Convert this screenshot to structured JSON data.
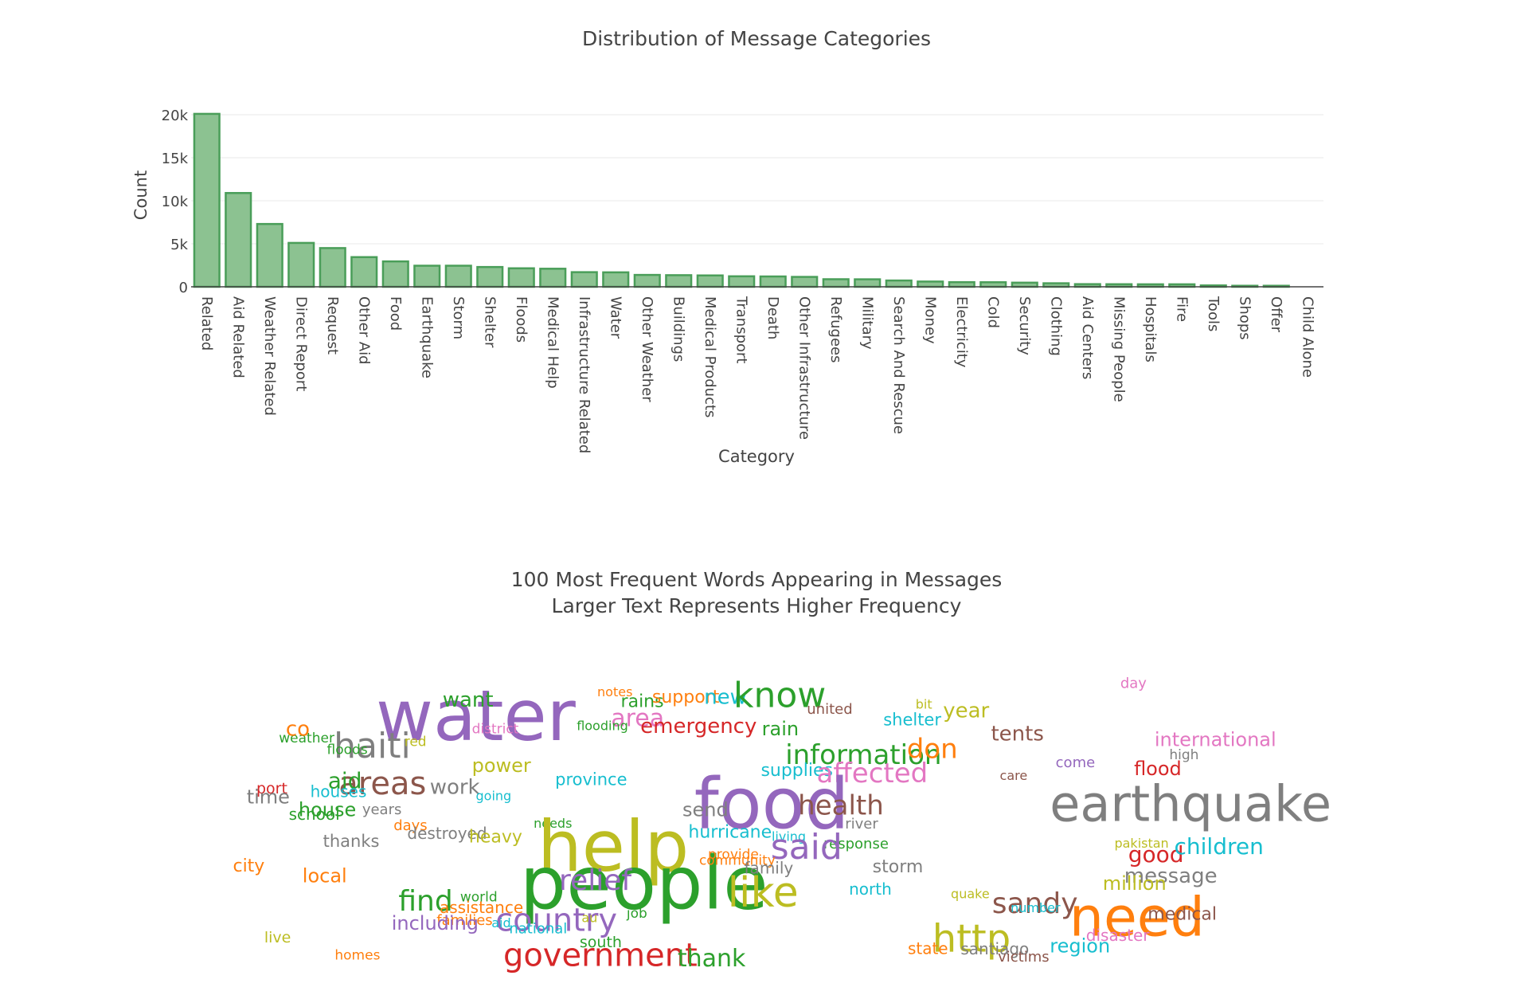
{
  "chart_data": [
    {
      "type": "bar",
      "title": "Distribution of Message Categories",
      "xlabel": "Category",
      "ylabel": "Count",
      "ylim": [
        0,
        20000
      ],
      "grid": true,
      "yticks": [
        {
          "value": 0,
          "label": "0"
        },
        {
          "value": 5000,
          "label": "5k"
        },
        {
          "value": 10000,
          "label": "10k"
        },
        {
          "value": 15000,
          "label": "15k"
        },
        {
          "value": 20000,
          "label": "20k"
        }
      ],
      "bar_color": "#8cc291",
      "bar_edge_color": "#4a9e59",
      "categories": [
        "Related",
        "Aid Related",
        "Weather Related",
        "Direct Report",
        "Request",
        "Other Aid",
        "Food",
        "Earthquake",
        "Storm",
        "Shelter",
        "Floods",
        "Medical Help",
        "Infrastructure Related",
        "Water",
        "Other Weather",
        "Buildings",
        "Medical Products",
        "Transport",
        "Death",
        "Other Infrastructure",
        "Refugees",
        "Military",
        "Search And Rescue",
        "Money",
        "Electricity",
        "Cold",
        "Security",
        "Clothing",
        "Aid Centers",
        "Missing People",
        "Hospitals",
        "Fire",
        "Tools",
        "Shops",
        "Offer",
        "Child Alone"
      ],
      "values": [
        20100,
        10900,
        7300,
        5100,
        4500,
        3450,
        2950,
        2450,
        2450,
        2300,
        2150,
        2100,
        1700,
        1680,
        1380,
        1350,
        1320,
        1220,
        1200,
        1150,
        880,
        870,
        730,
        610,
        540,
        530,
        480,
        410,
        310,
        300,
        290,
        290,
        160,
        120,
        120,
        0
      ]
    },
    {
      "type": "wordcloud",
      "title_lines": [
        "100 Most Frequent Words Appearing in Messages",
        "Larger Text Represents Higher Frequency"
      ],
      "words": [
        {
          "text": "water",
          "color": "#9467bd",
          "size": 88,
          "cx": 0.135,
          "cy": 0.173
        },
        {
          "text": "want",
          "color": "#2ca02c",
          "size": 26,
          "cx": 0.203,
          "cy": 0.12
        },
        {
          "text": "district",
          "color": "#e377c2",
          "size": 17,
          "cx": 0.233,
          "cy": 0.215
        },
        {
          "text": "weather",
          "color": "#2ca02c",
          "size": 17,
          "cx": 0.036,
          "cy": 0.245
        },
        {
          "text": "co",
          "color": "#ff7f0e",
          "size": 26,
          "cx": 0.043,
          "cy": 0.215
        },
        {
          "text": "haiti",
          "color": "#7f7f7f",
          "size": 44,
          "cx": 0.092,
          "cy": 0.27
        },
        {
          "text": "floods",
          "color": "#2ca02c",
          "size": 17,
          "cx": 0.085,
          "cy": 0.283
        },
        {
          "text": "red",
          "color": "#bcbd22",
          "size": 17,
          "cx": 0.164,
          "cy": 0.257
        },
        {
          "text": "power",
          "color": "#bcbd22",
          "size": 24,
          "cx": 0.233,
          "cy": 0.335
        },
        {
          "text": "areas",
          "color": "#8c564b",
          "size": 40,
          "cx": 0.097,
          "cy": 0.393
        },
        {
          "text": "aid",
          "color": "#2ca02c",
          "size": 28,
          "cx": 0.086,
          "cy": 0.385
        },
        {
          "text": "work",
          "color": "#7f7f7f",
          "size": 26,
          "cx": 0.19,
          "cy": 0.405
        },
        {
          "text": "going",
          "color": "#17becf",
          "size": 16,
          "cx": 0.237,
          "cy": 0.435
        },
        {
          "text": "province",
          "color": "#17becf",
          "size": 21,
          "cx": 0.318,
          "cy": 0.38
        },
        {
          "text": "houses",
          "color": "#17becf",
          "size": 20,
          "cx": 0.068,
          "cy": 0.42
        },
        {
          "text": "port",
          "color": "#d62728",
          "size": 19,
          "cx": 0.013,
          "cy": 0.41
        },
        {
          "text": "time",
          "color": "#7f7f7f",
          "size": 24,
          "cx": 0.003,
          "cy": 0.438
        },
        {
          "text": "house",
          "color": "#2ca02c",
          "size": 24,
          "cx": 0.056,
          "cy": 0.48
        },
        {
          "text": "school",
          "color": "#2ca02c",
          "size": 20,
          "cx": 0.046,
          "cy": 0.495
        },
        {
          "text": "years",
          "color": "#7f7f7f",
          "size": 18,
          "cx": 0.121,
          "cy": 0.478
        },
        {
          "text": "days",
          "color": "#ff7f0e",
          "size": 18,
          "cx": 0.153,
          "cy": 0.53
        },
        {
          "text": "destroyed",
          "color": "#7f7f7f",
          "size": 20,
          "cx": 0.167,
          "cy": 0.557
        },
        {
          "text": "heavy",
          "color": "#bcbd22",
          "size": 22,
          "cx": 0.23,
          "cy": 0.567
        },
        {
          "text": "needs",
          "color": "#2ca02c",
          "size": 16,
          "cx": 0.296,
          "cy": 0.525
        },
        {
          "text": "thanks",
          "color": "#7f7f7f",
          "size": 21,
          "cx": 0.081,
          "cy": 0.583
        },
        {
          "text": "city",
          "color": "#ff7f0e",
          "size": 22,
          "cx": -0.011,
          "cy": 0.662
        },
        {
          "text": "local",
          "color": "#ff7f0e",
          "size": 24,
          "cx": 0.06,
          "cy": 0.695
        },
        {
          "text": "help",
          "color": "#bcbd22",
          "size": 88,
          "cx": 0.3,
          "cy": 0.6
        },
        {
          "text": "people",
          "color": "#2ca02c",
          "size": 92,
          "cx": 0.282,
          "cy": 0.72
        },
        {
          "text": "relief",
          "color": "#9467bd",
          "size": 36,
          "cx": 0.322,
          "cy": 0.71
        },
        {
          "text": "find",
          "color": "#2ca02c",
          "size": 36,
          "cx": 0.158,
          "cy": 0.777
        },
        {
          "text": "world",
          "color": "#2ca02c",
          "size": 17,
          "cx": 0.221,
          "cy": 0.765
        },
        {
          "text": "assistance",
          "color": "#ff7f0e",
          "size": 20,
          "cx": 0.2,
          "cy": 0.8
        },
        {
          "text": "families",
          "color": "#ff7f0e",
          "size": 18,
          "cx": 0.197,
          "cy": 0.84
        },
        {
          "text": "including",
          "color": "#9467bd",
          "size": 24,
          "cx": 0.151,
          "cy": 0.85
        },
        {
          "text": "country",
          "color": "#9467bd",
          "size": 40,
          "cx": 0.257,
          "cy": 0.84
        },
        {
          "text": "aid",
          "color": "#17becf",
          "size": 16,
          "cx": 0.253,
          "cy": 0.85
        },
        {
          "text": "national",
          "color": "#17becf",
          "size": 18,
          "cx": 0.271,
          "cy": 0.868
        },
        {
          "text": "south",
          "color": "#2ca02c",
          "size": 19,
          "cx": 0.343,
          "cy": 0.912
        },
        {
          "text": "au",
          "color": "#bcbd22",
          "size": 16,
          "cx": 0.345,
          "cy": 0.833
        },
        {
          "text": "job",
          "color": "#2ca02c",
          "size": 17,
          "cx": 0.391,
          "cy": 0.818
        },
        {
          "text": "government",
          "color": "#d62728",
          "size": 40,
          "cx": 0.265,
          "cy": 0.955
        },
        {
          "text": "thank",
          "color": "#2ca02c",
          "size": 30,
          "cx": 0.443,
          "cy": 0.965
        },
        {
          "text": "live",
          "color": "#bcbd22",
          "size": 19,
          "cx": 0.021,
          "cy": 0.897
        },
        {
          "text": "homes",
          "color": "#ff7f0e",
          "size": 17,
          "cx": 0.093,
          "cy": 0.955
        },
        {
          "text": "notes",
          "color": "#ff7f0e",
          "size": 16,
          "cx": 0.361,
          "cy": 0.095
        },
        {
          "text": "rains",
          "color": "#2ca02c",
          "size": 22,
          "cx": 0.385,
          "cy": 0.125
        },
        {
          "text": "support",
          "color": "#ff7f0e",
          "size": 22,
          "cx": 0.417,
          "cy": 0.11
        },
        {
          "text": "new",
          "color": "#17becf",
          "size": 26,
          "cx": 0.47,
          "cy": 0.11
        },
        {
          "text": "know",
          "color": "#2ca02c",
          "size": 44,
          "cx": 0.5,
          "cy": 0.105
        },
        {
          "text": "area",
          "color": "#e377c2",
          "size": 30,
          "cx": 0.375,
          "cy": 0.18
        },
        {
          "text": "flooding",
          "color": "#2ca02c",
          "size": 16,
          "cx": 0.34,
          "cy": 0.205
        },
        {
          "text": "emergency",
          "color": "#d62728",
          "size": 26,
          "cx": 0.405,
          "cy": 0.205
        },
        {
          "text": "united",
          "color": "#8c564b",
          "size": 18,
          "cx": 0.575,
          "cy": 0.15
        },
        {
          "text": "rain",
          "color": "#2ca02c",
          "size": 24,
          "cx": 0.529,
          "cy": 0.215
        },
        {
          "text": "shelter",
          "color": "#17becf",
          "size": 21,
          "cx": 0.653,
          "cy": 0.185
        },
        {
          "text": "bit",
          "color": "#bcbd22",
          "size": 16,
          "cx": 0.686,
          "cy": 0.135
        },
        {
          "text": "year",
          "color": "#bcbd22",
          "size": 26,
          "cx": 0.714,
          "cy": 0.155
        },
        {
          "text": "tents",
          "color": "#8c564b",
          "size": 26,
          "cx": 0.763,
          "cy": 0.23
        },
        {
          "text": "day",
          "color": "#e377c2",
          "size": 18,
          "cx": 0.895,
          "cy": 0.065
        },
        {
          "text": "international",
          "color": "#e377c2",
          "size": 24,
          "cx": 0.93,
          "cy": 0.25
        },
        {
          "text": "information",
          "color": "#2ca02c",
          "size": 34,
          "cx": 0.553,
          "cy": 0.3
        },
        {
          "text": "don",
          "color": "#ff7f0e",
          "size": 34,
          "cx": 0.677,
          "cy": 0.28
        },
        {
          "text": "supplies",
          "color": "#17becf",
          "size": 22,
          "cx": 0.528,
          "cy": 0.35
        },
        {
          "text": "affected",
          "color": "#e377c2",
          "size": 34,
          "cx": 0.585,
          "cy": 0.36
        },
        {
          "text": "come",
          "color": "#9467bd",
          "size": 18,
          "cx": 0.829,
          "cy": 0.325
        },
        {
          "text": "high",
          "color": "#7f7f7f",
          "size": 17,
          "cx": 0.945,
          "cy": 0.3
        },
        {
          "text": "flood",
          "color": "#d62728",
          "size": 24,
          "cx": 0.909,
          "cy": 0.345
        },
        {
          "text": "care",
          "color": "#8c564b",
          "size": 16,
          "cx": 0.772,
          "cy": 0.368
        },
        {
          "text": "food",
          "color": "#9467bd",
          "size": 88,
          "cx": 0.46,
          "cy": 0.46
        },
        {
          "text": "send",
          "color": "#7f7f7f",
          "size": 24,
          "cx": 0.448,
          "cy": 0.48
        },
        {
          "text": "health",
          "color": "#8c564b",
          "size": 34,
          "cx": 0.566,
          "cy": 0.465
        },
        {
          "text": "river",
          "color": "#7f7f7f",
          "size": 18,
          "cx": 0.614,
          "cy": 0.525
        },
        {
          "text": "earthquake",
          "color": "#7f7f7f",
          "size": 62,
          "cx": 0.823,
          "cy": 0.46
        },
        {
          "text": "hurricane",
          "color": "#17becf",
          "size": 22,
          "cx": 0.454,
          "cy": 0.552
        },
        {
          "text": "living",
          "color": "#17becf",
          "size": 16,
          "cx": 0.539,
          "cy": 0.567
        },
        {
          "text": "response",
          "color": "#2ca02c",
          "size": 18,
          "cx": 0.592,
          "cy": 0.59
        },
        {
          "text": "said",
          "color": "#9467bd",
          "size": 44,
          "cx": 0.538,
          "cy": 0.6
        },
        {
          "text": "provide",
          "color": "#ff7f0e",
          "size": 17,
          "cx": 0.474,
          "cy": 0.625
        },
        {
          "text": "community",
          "color": "#ff7f0e",
          "size": 17,
          "cx": 0.465,
          "cy": 0.645
        },
        {
          "text": "family",
          "color": "#7f7f7f",
          "size": 20,
          "cx": 0.511,
          "cy": 0.67
        },
        {
          "text": "like",
          "color": "#bcbd22",
          "size": 52,
          "cx": 0.494,
          "cy": 0.75
        },
        {
          "text": "storm",
          "color": "#7f7f7f",
          "size": 22,
          "cx": 0.642,
          "cy": 0.665
        },
        {
          "text": "north",
          "color": "#17becf",
          "size": 20,
          "cx": 0.618,
          "cy": 0.74
        },
        {
          "text": "pakistan",
          "color": "#bcbd22",
          "size": 16,
          "cx": 0.889,
          "cy": 0.59
        },
        {
          "text": "good",
          "color": "#d62728",
          "size": 28,
          "cx": 0.903,
          "cy": 0.625
        },
        {
          "text": "children",
          "color": "#17becf",
          "size": 28,
          "cx": 0.95,
          "cy": 0.6
        },
        {
          "text": "message",
          "color": "#7f7f7f",
          "size": 26,
          "cx": 0.899,
          "cy": 0.695
        },
        {
          "text": "million",
          "color": "#bcbd22",
          "size": 24,
          "cx": 0.877,
          "cy": 0.72
        },
        {
          "text": "sandy",
          "color": "#8c564b",
          "size": 36,
          "cx": 0.764,
          "cy": 0.785
        },
        {
          "text": "quake",
          "color": "#bcbd22",
          "size": 16,
          "cx": 0.722,
          "cy": 0.755
        },
        {
          "text": "number",
          "color": "#17becf",
          "size": 16,
          "cx": 0.783,
          "cy": 0.8
        },
        {
          "text": "need",
          "color": "#ff7f0e",
          "size": 68,
          "cx": 0.843,
          "cy": 0.83
        },
        {
          "text": "medical",
          "color": "#8c564b",
          "size": 22,
          "cx": 0.923,
          "cy": 0.82
        },
        {
          "text": "disaster",
          "color": "#e377c2",
          "size": 20,
          "cx": 0.86,
          "cy": 0.89
        },
        {
          "text": "http",
          "color": "#bcbd22",
          "size": 48,
          "cx": 0.703,
          "cy": 0.9
        },
        {
          "text": "region",
          "color": "#17becf",
          "size": 24,
          "cx": 0.823,
          "cy": 0.925
        },
        {
          "text": "state",
          "color": "#ff7f0e",
          "size": 20,
          "cx": 0.678,
          "cy": 0.933
        },
        {
          "text": "santiago",
          "color": "#7f7f7f",
          "size": 20,
          "cx": 0.732,
          "cy": 0.935
        },
        {
          "text": "victims",
          "color": "#8c564b",
          "size": 18,
          "cx": 0.77,
          "cy": 0.96
        }
      ]
    }
  ]
}
